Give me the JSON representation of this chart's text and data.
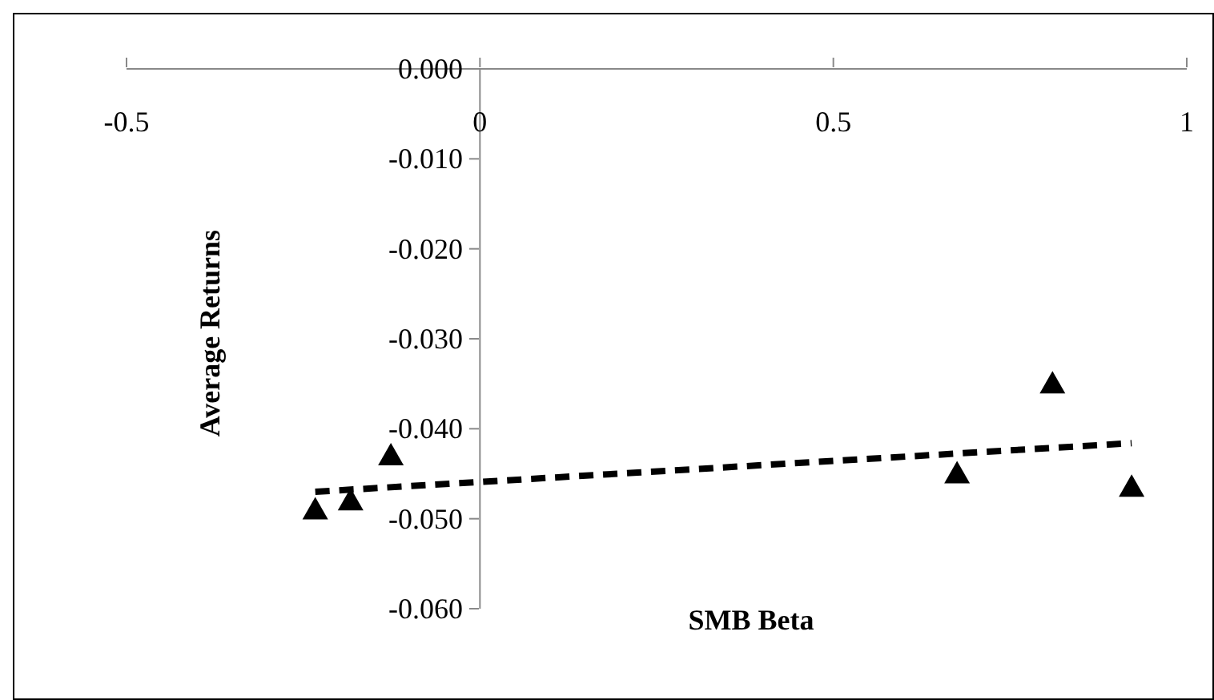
{
  "chart_data": {
    "type": "scatter",
    "xlabel": "SMB Beta",
    "ylabel": "Average Returns",
    "series": [
      {
        "color": "#000000",
        "marker": "triangle",
        "x": [
          -0.233,
          -0.183,
          -0.126,
          0.675,
          0.81,
          0.922
        ],
        "values": [
          -0.049,
          -0.048,
          -0.043,
          -0.045,
          -0.035,
          -0.0465
        ]
      },
      {
        "type": "line",
        "color": "#000000",
        "line_style": "dashed",
        "marker": "none",
        "x": [
          -0.233,
          0.922
        ],
        "values": [
          -0.047,
          -0.0416
        ]
      }
    ],
    "xlim": [
      -0.5,
      1
    ],
    "xticks": [
      -0.5,
      0,
      0.5,
      1
    ],
    "ylim": [
      -0.06,
      0
    ],
    "yticks": [
      {
        "value": -0.06,
        "label": "-0.060"
      },
      {
        "value": -0.05,
        "label": "-0.050"
      },
      {
        "value": -0.04,
        "label": "-0.040"
      },
      {
        "value": -0.03,
        "label": "-0.030"
      },
      {
        "value": -0.02,
        "label": "-0.020"
      },
      {
        "value": -0.01,
        "label": "-0.010"
      },
      {
        "value": 0,
        "label": "0.000"
      }
    ],
    "grid": false,
    "legend": false
  }
}
